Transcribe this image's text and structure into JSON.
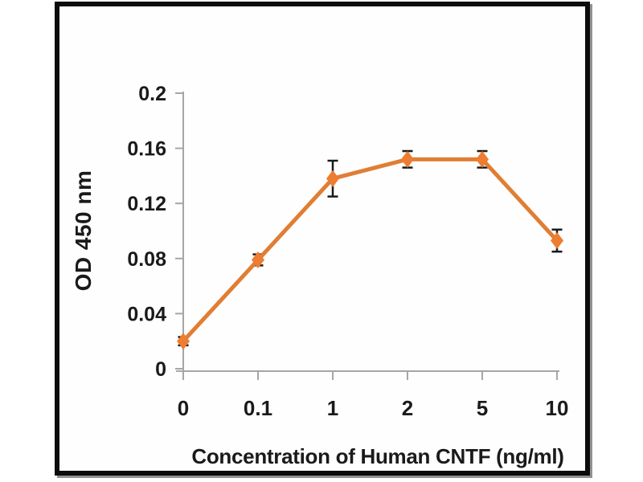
{
  "figure": {
    "background": "#ffffff",
    "panel_border_color": "#0c0c0c",
    "panel_shadow_color": "#6e6e6e"
  },
  "chart_data": {
    "type": "line",
    "title": "",
    "xlabel": "Concentration of Human CNTF (ng/ml)",
    "ylabel": "OD 450 nm",
    "categories": [
      "0",
      "0.1",
      "1",
      "2",
      "5",
      "10"
    ],
    "series": [
      {
        "values": [
          0.02,
          0.079,
          0.138,
          0.152,
          0.152,
          0.093
        ],
        "errors": [
          0.003,
          0.004,
          0.013,
          0.006,
          0.006,
          0.008
        ]
      }
    ],
    "ylim": [
      0,
      0.2
    ],
    "yticks": [
      {
        "value": 0,
        "label": "0"
      },
      {
        "value": 0.04,
        "label": "0.04"
      },
      {
        "value": 0.08,
        "label": "0.08"
      },
      {
        "value": 0.12,
        "label": "0.12"
      },
      {
        "value": 0.16,
        "label": "0.16"
      },
      {
        "value": 0.2,
        "label": "0.2"
      }
    ],
    "grid": false,
    "legend": "none",
    "marker": "diamond",
    "line_color": "#E07E33",
    "marker_color": "#ED7D31",
    "error_bar_color": "#1A1A1A",
    "axis_color": "#A6A6A6",
    "tick_label_color": "#1A1A1A"
  }
}
